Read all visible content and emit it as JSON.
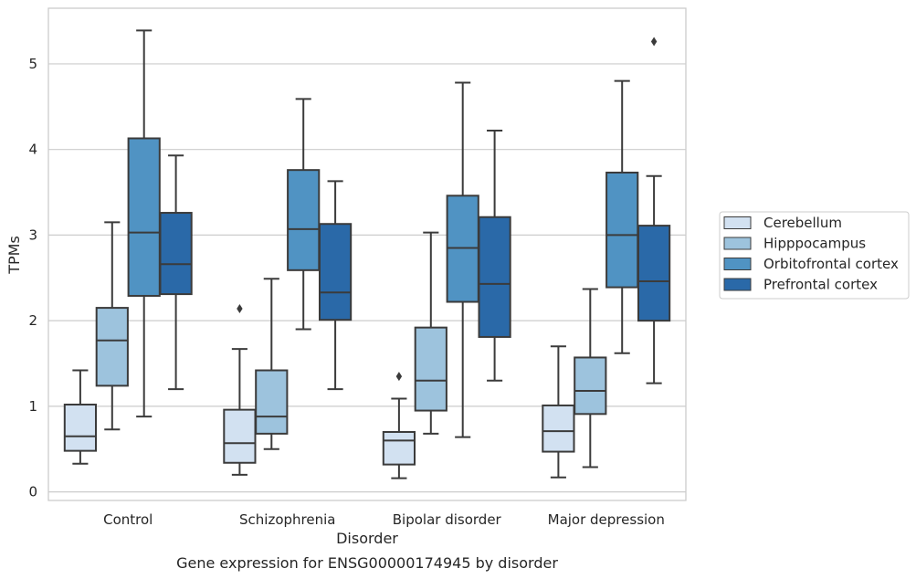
{
  "chart_data": {
    "type": "box",
    "caption": "Gene expression for ENSG00000174945 by disorder",
    "xlabel": "Disorder",
    "ylabel": "TPMs",
    "ylim": [
      -0.1,
      5.65
    ],
    "yticks": [
      0,
      1,
      2,
      3,
      4,
      5
    ],
    "grid": true,
    "legend_position": "right",
    "categories": [
      "Control",
      "Schizophrenia",
      "Bipolar disorder",
      "Major depression"
    ],
    "series": [
      {
        "name": "Cerebellum",
        "color": "#d2e1f1",
        "boxes": [
          {
            "whislo": 0.33,
            "q1": 0.48,
            "med": 0.65,
            "q3": 1.02,
            "whishi": 1.42,
            "fliers": []
          },
          {
            "whislo": 0.2,
            "q1": 0.34,
            "med": 0.57,
            "q3": 0.96,
            "whishi": 1.67,
            "fliers": [
              2.14
            ]
          },
          {
            "whislo": 0.16,
            "q1": 0.32,
            "med": 0.6,
            "q3": 0.7,
            "whishi": 1.09,
            "fliers": [
              1.35
            ]
          },
          {
            "whislo": 0.17,
            "q1": 0.47,
            "med": 0.71,
            "q3": 1.01,
            "whishi": 1.7,
            "fliers": []
          }
        ]
      },
      {
        "name": "Hipppocampus",
        "color": "#9dc3dd",
        "boxes": [
          {
            "whislo": 0.73,
            "q1": 1.24,
            "med": 1.77,
            "q3": 2.15,
            "whishi": 3.15,
            "fliers": []
          },
          {
            "whislo": 0.5,
            "q1": 0.68,
            "med": 0.88,
            "q3": 1.42,
            "whishi": 2.49,
            "fliers": []
          },
          {
            "whislo": 0.68,
            "q1": 0.95,
            "med": 1.3,
            "q3": 1.92,
            "whishi": 3.03,
            "fliers": []
          },
          {
            "whislo": 0.29,
            "q1": 0.91,
            "med": 1.18,
            "q3": 1.57,
            "whishi": 2.37,
            "fliers": []
          }
        ]
      },
      {
        "name": "Orbitofrontal cortex",
        "color": "#5093c3",
        "boxes": [
          {
            "whislo": 0.88,
            "q1": 2.29,
            "med": 3.03,
            "q3": 4.13,
            "whishi": 5.39,
            "fliers": []
          },
          {
            "whislo": 1.9,
            "q1": 2.59,
            "med": 3.07,
            "q3": 3.76,
            "whishi": 4.59,
            "fliers": []
          },
          {
            "whislo": 0.64,
            "q1": 2.22,
            "med": 2.85,
            "q3": 3.46,
            "whishi": 4.78,
            "fliers": []
          },
          {
            "whislo": 1.62,
            "q1": 2.39,
            "med": 3.0,
            "q3": 3.73,
            "whishi": 4.8,
            "fliers": []
          }
        ]
      },
      {
        "name": "Prefrontal cortex",
        "color": "#2a69a8",
        "boxes": [
          {
            "whislo": 1.2,
            "q1": 2.31,
            "med": 2.66,
            "q3": 3.26,
            "whishi": 3.93,
            "fliers": []
          },
          {
            "whislo": 1.2,
            "q1": 2.01,
            "med": 2.33,
            "q3": 3.13,
            "whishi": 3.63,
            "fliers": []
          },
          {
            "whislo": 1.3,
            "q1": 1.81,
            "med": 2.43,
            "q3": 3.21,
            "whishi": 4.22,
            "fliers": []
          },
          {
            "whislo": 1.27,
            "q1": 2.0,
            "med": 2.46,
            "q3": 3.11,
            "whishi": 3.69,
            "fliers": [
              5.26
            ]
          }
        ]
      }
    ]
  }
}
